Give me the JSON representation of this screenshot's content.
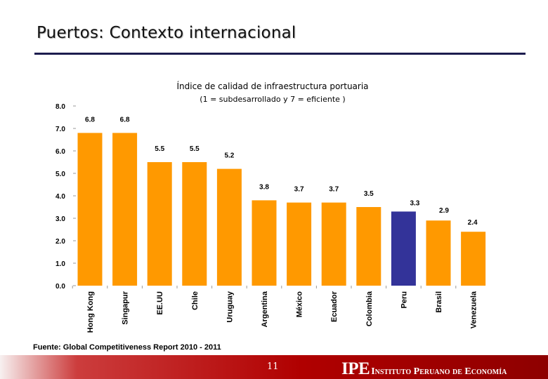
{
  "slide": {
    "title": "Puertos: Contexto internacional",
    "source": "Fuente: Global Competitiveness Report 2010 - 2011",
    "page_number": "11",
    "logo_mark": "IPE",
    "logo_name": "Instituto Peruano de Economía"
  },
  "colors": {
    "bar": "#FF9900",
    "highlight_bar": "#333399",
    "title_rule": "#1C1C4E",
    "footer_bar": "#B00000"
  },
  "chart_data": {
    "type": "bar",
    "title": "Índice de calidad de infraestructura portuaria",
    "subtitle": "(1 = subdesarrollado y 7 = eficiente )",
    "categories": [
      "Hong Kong",
      "Singapur",
      "EE.UU",
      "Chile",
      "Uruguay",
      "Argentina",
      "México",
      "Ecuador",
      "Colombia",
      "Peru",
      "Brasil",
      "Venezuela"
    ],
    "values": [
      6.8,
      6.8,
      5.5,
      5.5,
      5.2,
      3.8,
      3.7,
      3.7,
      3.5,
      3.3,
      2.9,
      2.4
    ],
    "data_labels": [
      "6.8",
      "6.8",
      "5.5",
      "5.5",
      "5.2",
      "3.8",
      "3.7",
      "3.7",
      "3.5",
      "3.3",
      "2.9",
      "2.4"
    ],
    "highlight": "Peru",
    "y_ticks": [
      "0.0",
      "1.0",
      "2.0",
      "3.0",
      "4.0",
      "5.0",
      "6.0",
      "7.0",
      "8.0"
    ],
    "ylim": [
      0,
      8
    ],
    "grid": false,
    "legend": "none"
  }
}
